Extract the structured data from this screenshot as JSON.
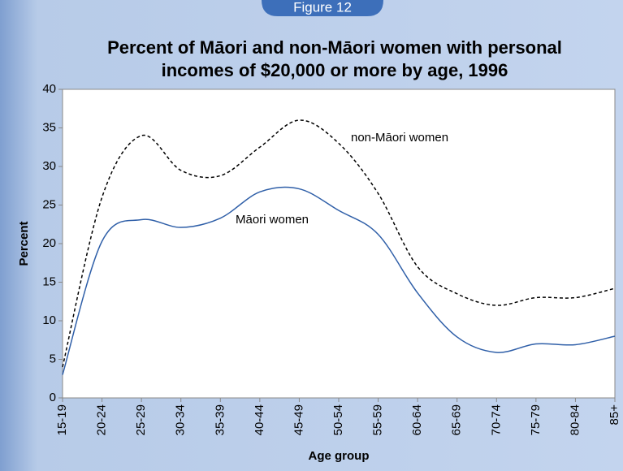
{
  "chart_data": {
    "type": "line",
    "tag": "Figure 12",
    "title": [
      "Percent of Māori and non-Māori women with personal",
      "incomes of $20,000 or more by age, 1996"
    ],
    "x_label": "Age group",
    "y_label": "Percent",
    "categories": [
      "15-19",
      "20-24",
      "25-29",
      "30-34",
      "35-39",
      "40-44",
      "45-49",
      "50-54",
      "55-59",
      "60-64",
      "65-69",
      "70-74",
      "75-79",
      "80-84",
      "85+"
    ],
    "series": [
      {
        "name": "Māori women",
        "color": "#2f5fa8",
        "dash": false,
        "values": [
          3,
          20.3,
          23.1,
          22.1,
          23.3,
          26.7,
          27.1,
          24.3,
          21.2,
          13.6,
          7.9,
          5.9,
          7.0,
          6.9,
          8.0
        ]
      },
      {
        "name": "non-Māori women",
        "color": "#000000",
        "dash": true,
        "values": [
          4,
          26,
          34,
          29.5,
          28.8,
          32.5,
          36,
          33,
          26.5,
          17,
          13.5,
          12,
          13,
          13,
          14.2
        ]
      }
    ],
    "ylim": [
      0,
      40
    ],
    "yticks": [
      0,
      5,
      10,
      15,
      20,
      25,
      30,
      35,
      40
    ]
  }
}
